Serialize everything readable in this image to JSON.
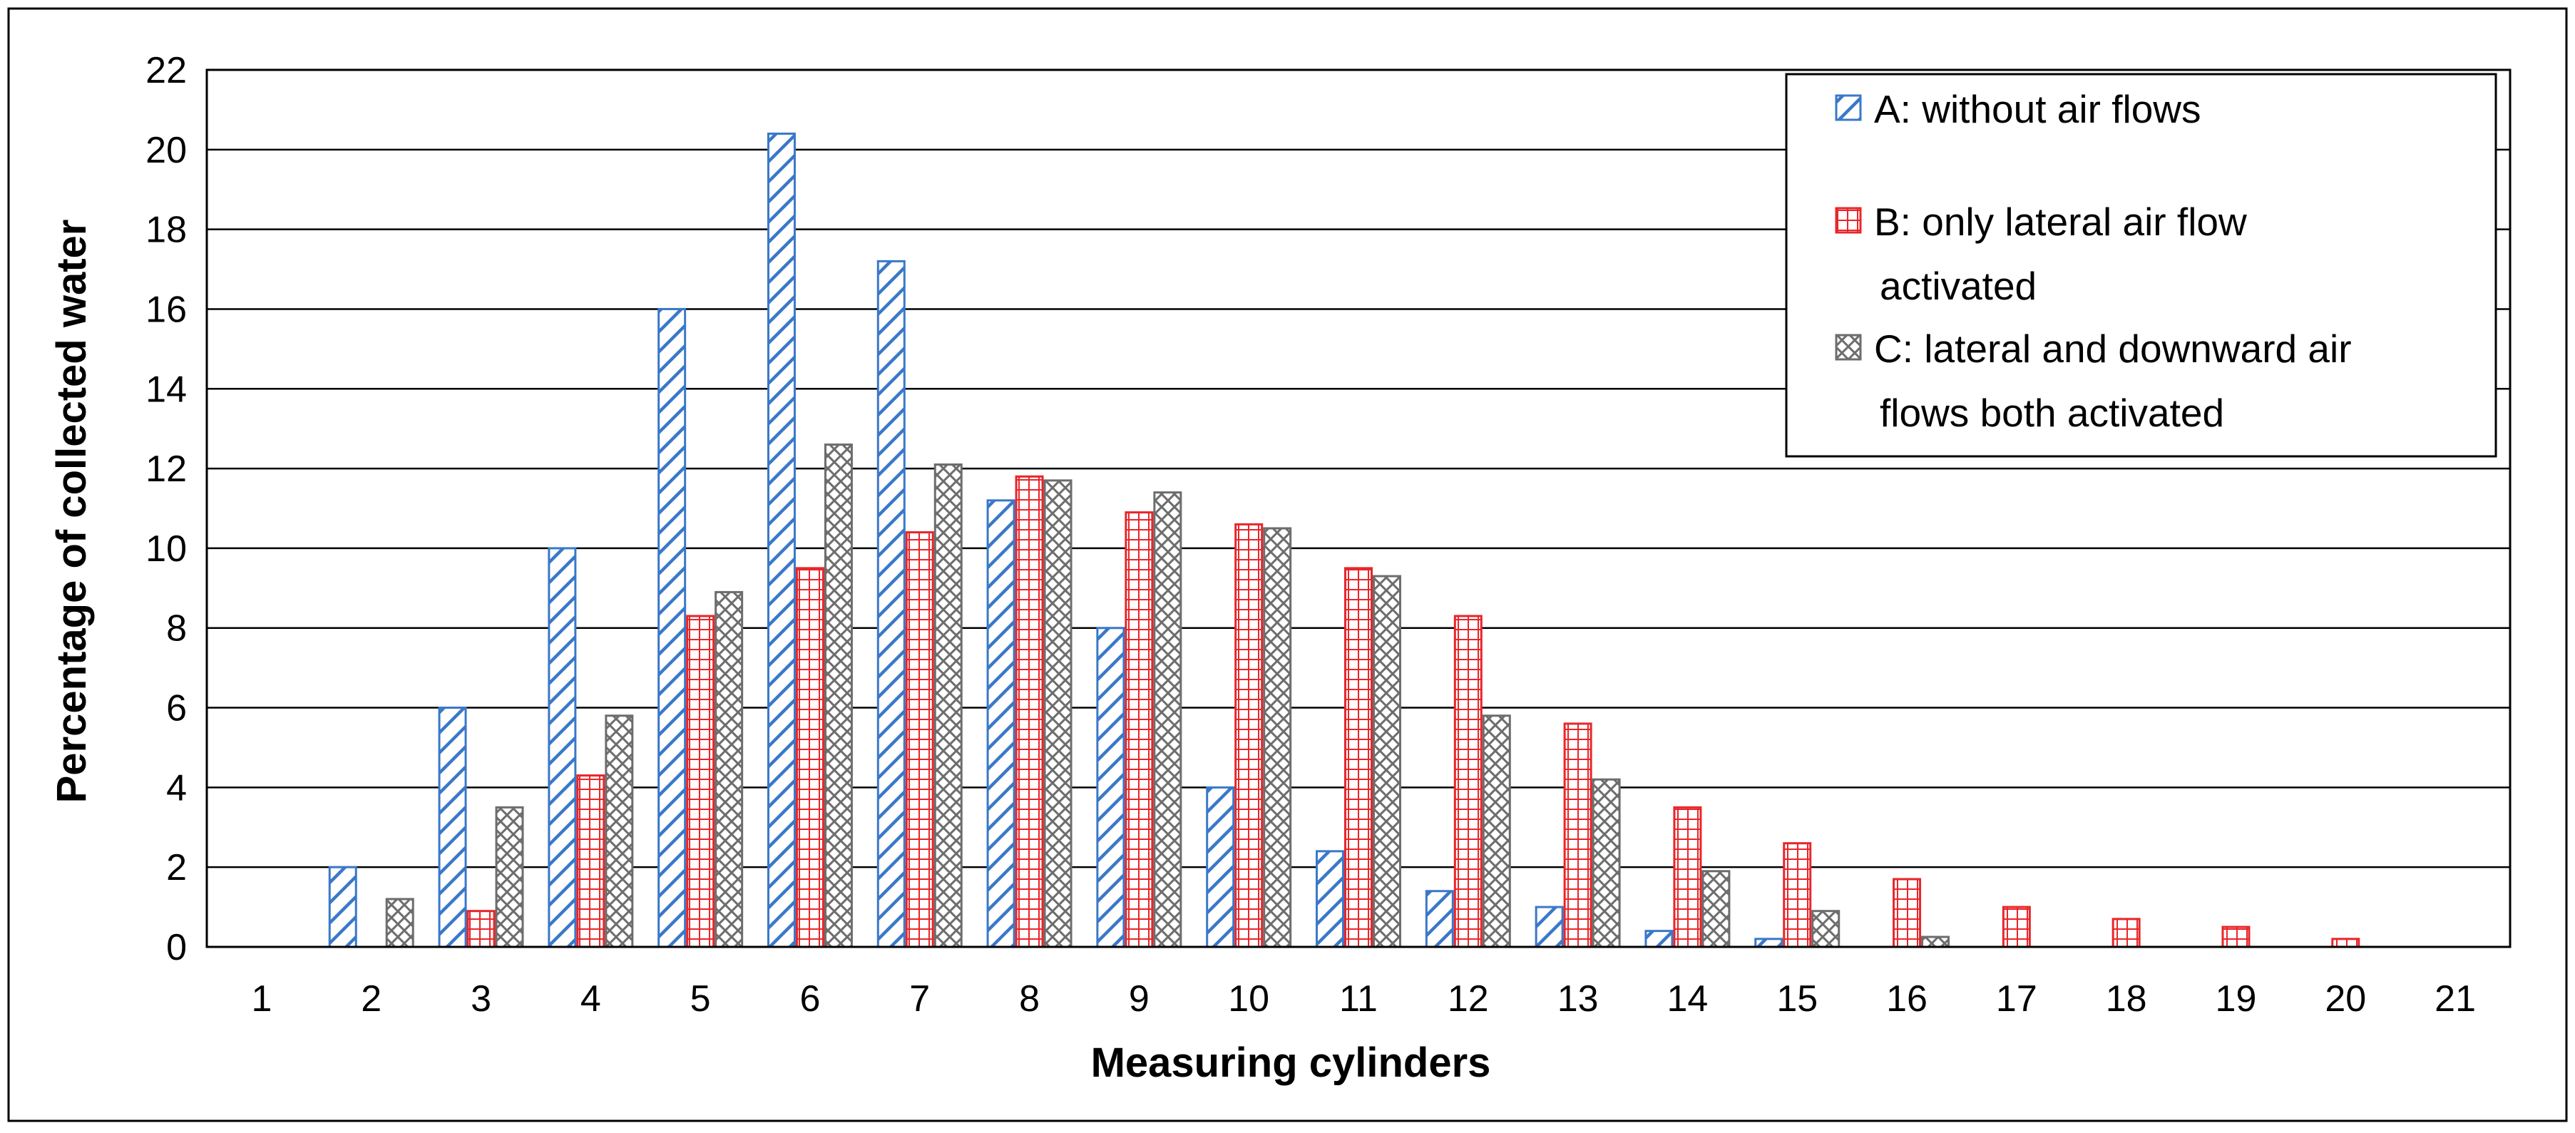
{
  "chart_data": {
    "type": "bar",
    "title": "",
    "xlabel": "Measuring cylinders",
    "ylabel": "Percentage of collected water",
    "ylim": [
      0,
      22
    ],
    "yticks": [
      0,
      2,
      4,
      6,
      8,
      10,
      12,
      14,
      16,
      18,
      20,
      22
    ],
    "grid": "horizontal",
    "legend_position": "top-right",
    "categories": [
      "1",
      "2",
      "3",
      "4",
      "5",
      "6",
      "7",
      "8",
      "9",
      "10",
      "11",
      "12",
      "13",
      "14",
      "15",
      "16",
      "17",
      "18",
      "19",
      "20",
      "21"
    ],
    "series": [
      {
        "name": "A: without air flows",
        "legend_lines": [
          "A: without air flows"
        ],
        "color": "#3a78c9",
        "pattern": "diagonal-hatch",
        "values": [
          0,
          2.0,
          6.0,
          10.0,
          16.0,
          20.4,
          17.2,
          11.2,
          8.0,
          4.0,
          2.4,
          1.4,
          1.0,
          0.4,
          0.2,
          0,
          0,
          0,
          0,
          0,
          0
        ]
      },
      {
        "name": "B: only lateral air flow activated",
        "legend_lines": [
          "B: only lateral air flow",
          "activated"
        ],
        "color": "#e8262a",
        "pattern": "grid",
        "values": [
          0,
          0,
          0.9,
          4.3,
          8.3,
          9.5,
          10.4,
          11.8,
          10.9,
          10.6,
          9.5,
          8.3,
          5.6,
          3.5,
          2.6,
          1.7,
          1.0,
          0.7,
          0.5,
          0.2,
          0
        ]
      },
      {
        "name": "C: lateral and downward air flows both activated",
        "legend_lines": [
          "C: lateral and downward air",
          "flows both activated"
        ],
        "color": "#6d6d6d",
        "pattern": "crosshatch",
        "values": [
          0,
          1.2,
          3.5,
          5.8,
          8.9,
          12.6,
          12.1,
          11.7,
          11.4,
          10.5,
          9.3,
          5.8,
          4.2,
          1.9,
          0.9,
          0.25,
          0,
          0,
          0,
          0,
          0
        ]
      }
    ]
  }
}
